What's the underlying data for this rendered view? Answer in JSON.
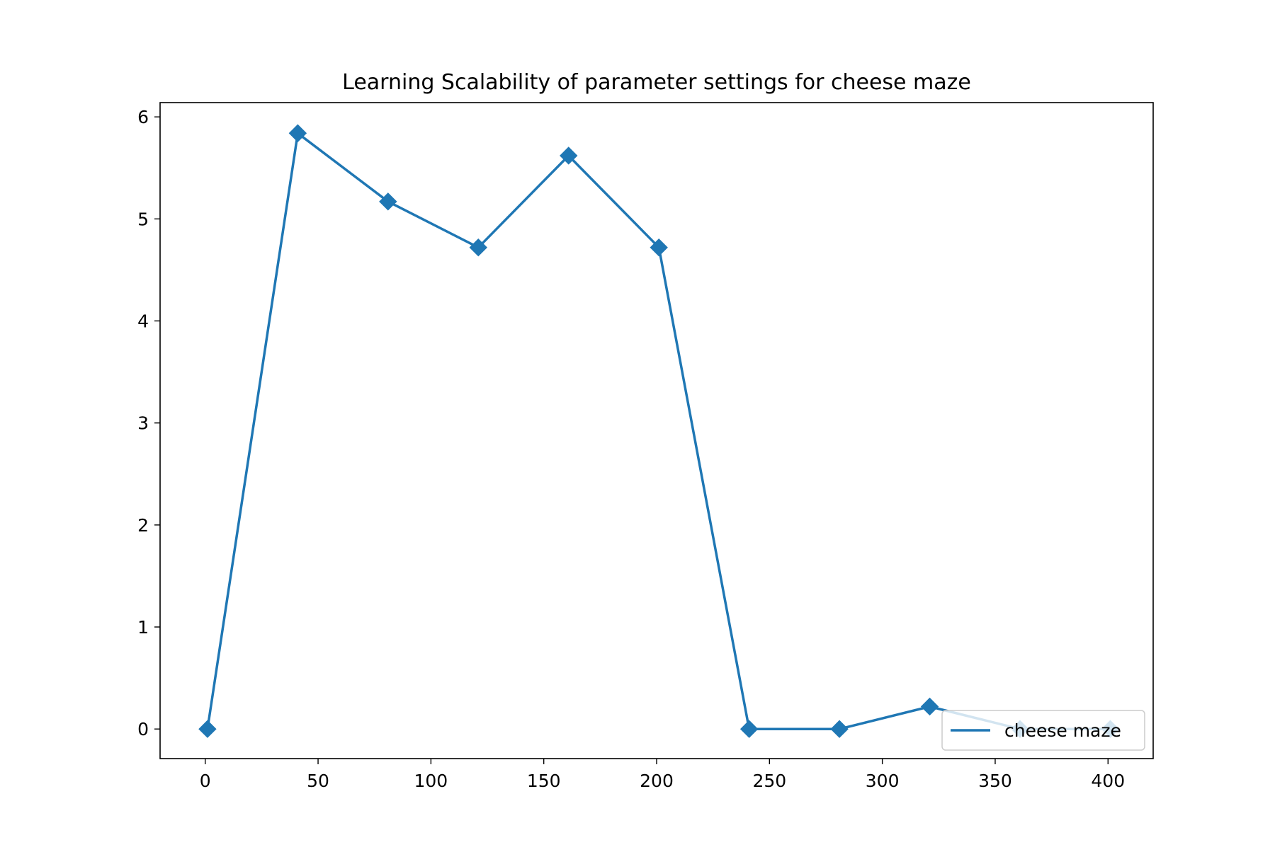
{
  "chart_data": {
    "type": "line",
    "title": "Learning Scalability of parameter settings for cheese maze",
    "xlabel": "",
    "ylabel": "",
    "xlim": [
      -20,
      420
    ],
    "ylim": [
      -0.29,
      6.14
    ],
    "x_ticks": [
      0,
      50,
      100,
      150,
      200,
      250,
      300,
      350,
      400
    ],
    "y_ticks": [
      0,
      1,
      2,
      3,
      4,
      5,
      6
    ],
    "grid": false,
    "legend": {
      "position": "lower-right"
    },
    "series": [
      {
        "name": "cheese maze",
        "color": "#1f77b4",
        "marker": "diamond",
        "x": [
          1,
          41,
          81,
          121,
          161,
          201,
          241,
          281,
          321,
          361,
          401
        ],
        "y": [
          0.0,
          5.84,
          5.17,
          4.72,
          5.62,
          4.72,
          0.0,
          0.0,
          0.22,
          0.0,
          0.0
        ]
      }
    ]
  }
}
